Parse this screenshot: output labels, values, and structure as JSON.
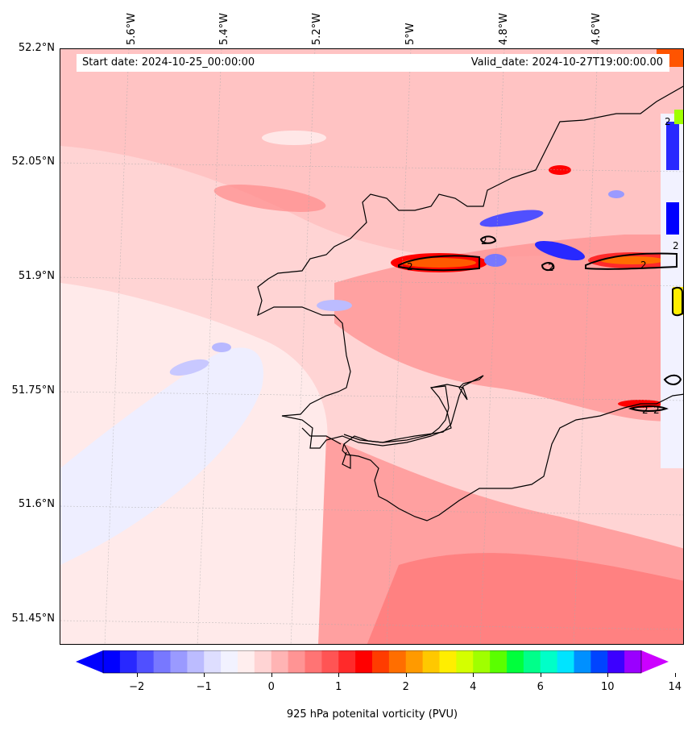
{
  "map": {
    "start_date_text": "Start date: 2024-10-25_00:00:00",
    "valid_date_text": "Valid_date: 2024-10-27T19:00:00.00",
    "lon_labels": [
      "5.6°W",
      "5.4°W",
      "5.2°W",
      "5°W",
      "4.8°W",
      "4.6°W"
    ],
    "lat_labels": [
      "52.2°N",
      "52.05°N",
      "51.9°N",
      "51.75°N",
      "51.6°N",
      "51.45°N"
    ],
    "contour_value_label": "2",
    "background_color": "#ffd9d9",
    "coastline_color": "#000000"
  },
  "colorbar": {
    "label": "925 hPa potenital vorticity (PVU)",
    "ticks": [
      "−2",
      "−1",
      "0",
      "1",
      "2",
      "4",
      "6",
      "10",
      "14"
    ],
    "colors": [
      "#0000ff",
      "#2828ff",
      "#5050ff",
      "#7878ff",
      "#9a9aff",
      "#bcbcff",
      "#dedeff",
      "#f2f2ff",
      "#ffeeee",
      "#ffd4d4",
      "#ffb4b4",
      "#ff9494",
      "#ff7474",
      "#ff5454",
      "#ff2a2a",
      "#ff0000",
      "#ff3c00",
      "#ff6e00",
      "#ff9a00",
      "#ffc800",
      "#ffee00",
      "#d4ff00",
      "#a0ff00",
      "#5aff00",
      "#00ff3c",
      "#00ff8a",
      "#00ffc8",
      "#00e4ff",
      "#0090ff",
      "#0044ff",
      "#3c00ff",
      "#9a00ff"
    ],
    "extend_min_color": "#0000ff",
    "extend_max_color": "#cc00ff"
  }
}
